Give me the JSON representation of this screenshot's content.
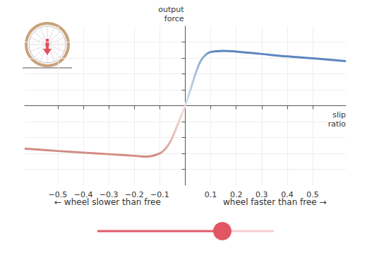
{
  "chart_data": {
    "type": "line",
    "x_label": "slip\nratio",
    "y_label": "output\nforce",
    "xlim": [
      -0.63,
      0.63
    ],
    "ylim": [
      -5,
      5
    ],
    "xticks": [
      {
        "value": -0.5,
        "label": "−0.5"
      },
      {
        "value": -0.4,
        "label": "−0.4"
      },
      {
        "value": -0.3,
        "label": "−0.3"
      },
      {
        "value": -0.2,
        "label": "−0.2"
      },
      {
        "value": -0.1,
        "label": "−0.1"
      },
      0.1,
      0.2,
      0.3,
      0.4,
      0.5
    ],
    "yticks": [
      -4,
      -3,
      -2,
      -1,
      1,
      2,
      3,
      4
    ],
    "grid": true,
    "tick_labels": "x",
    "annotations": [
      "← wheel slower than free",
      "wheel faster than free →"
    ],
    "series": [
      {
        "color": "#d28c84",
        "x": [
          -0.63,
          -0.5,
          -0.4,
          -0.3,
          -0.2,
          -0.15,
          -0.1,
          -0.08,
          -0.06,
          -0.04,
          -0.02,
          0
        ],
        "values": [
          -2.7,
          -2.85,
          -2.95,
          -3.05,
          -3.15,
          -3.2,
          -3.0,
          -2.75,
          -2.3,
          -1.6,
          -0.8,
          0
        ]
      },
      {
        "color": "#5b86bf",
        "x": [
          0,
          0.02,
          0.04,
          0.06,
          0.08,
          0.1,
          0.15,
          0.2,
          0.3,
          0.4,
          0.5,
          0.63
        ],
        "values": [
          0,
          1.0,
          2.0,
          2.8,
          3.2,
          3.38,
          3.45,
          3.4,
          3.25,
          3.1,
          2.98,
          2.8
        ]
      }
    ]
  }
}
